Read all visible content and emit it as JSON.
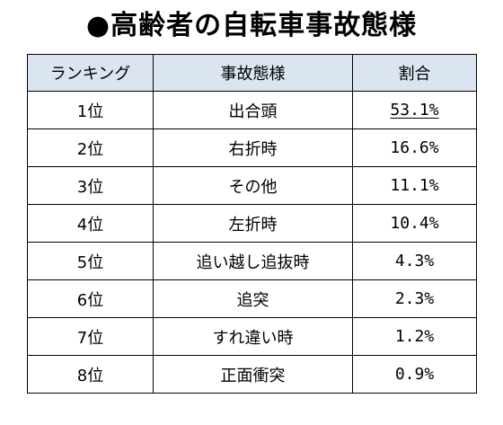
{
  "title": "●高齢者の自転車事故態様",
  "table": {
    "headers": [
      "ランキング",
      "事故態様",
      "割合"
    ],
    "rows": [
      {
        "rank": "1位",
        "type": "出合頭",
        "share": "53.1%"
      },
      {
        "rank": "2位",
        "type": "右折時",
        "share": "16.6%"
      },
      {
        "rank": "3位",
        "type": "その他",
        "share": "11.1%"
      },
      {
        "rank": "4位",
        "type": "左折時",
        "share": "10.4%"
      },
      {
        "rank": "5位",
        "type": "追い越し追抜時",
        "share": "4.3%"
      },
      {
        "rank": "6位",
        "type": "追突",
        "share": "2.3%"
      },
      {
        "rank": "7位",
        "type": "すれ違い時",
        "share": "1.2%"
      },
      {
        "rank": "8位",
        "type": "正面衝突",
        "share": "0.9%"
      }
    ]
  },
  "colors": {
    "header_background": "#dbe5f1",
    "border": "#000000",
    "text": "#000000"
  }
}
